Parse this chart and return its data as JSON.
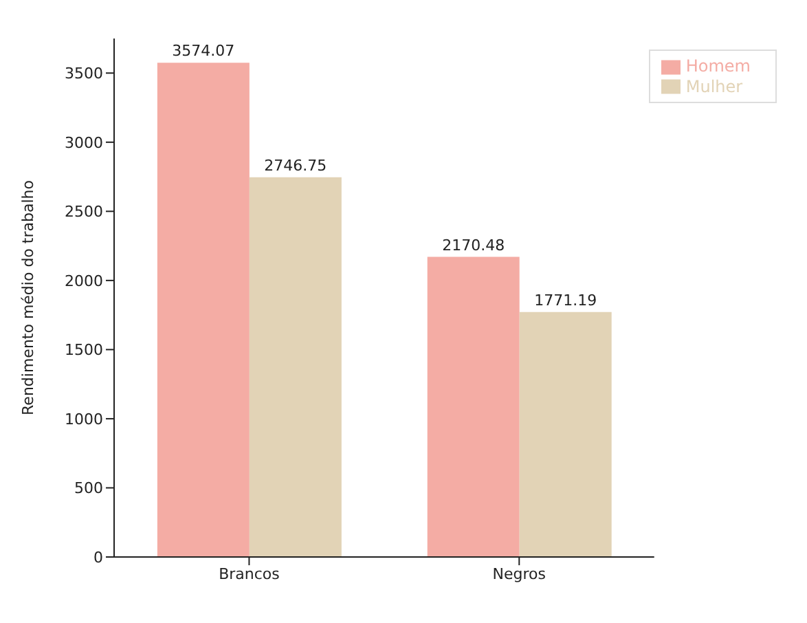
{
  "chart_data": {
    "type": "bar",
    "ylabel": "Rendimento médio do trabalho",
    "categories": [
      "Brancos",
      "Negros"
    ],
    "series": [
      {
        "name": "Homem",
        "color": "#f4aca4",
        "values": [
          3574.07,
          2170.48
        ]
      },
      {
        "name": "Mulher",
        "color": "#e2d3b6",
        "values": [
          2746.75,
          1771.19
        ]
      }
    ],
    "ylim": [
      0,
      3750
    ],
    "yticks": [
      0,
      500,
      1000,
      1500,
      2000,
      2500,
      3000,
      3500
    ],
    "data_labels": true,
    "grid": false,
    "legend": "top right"
  }
}
